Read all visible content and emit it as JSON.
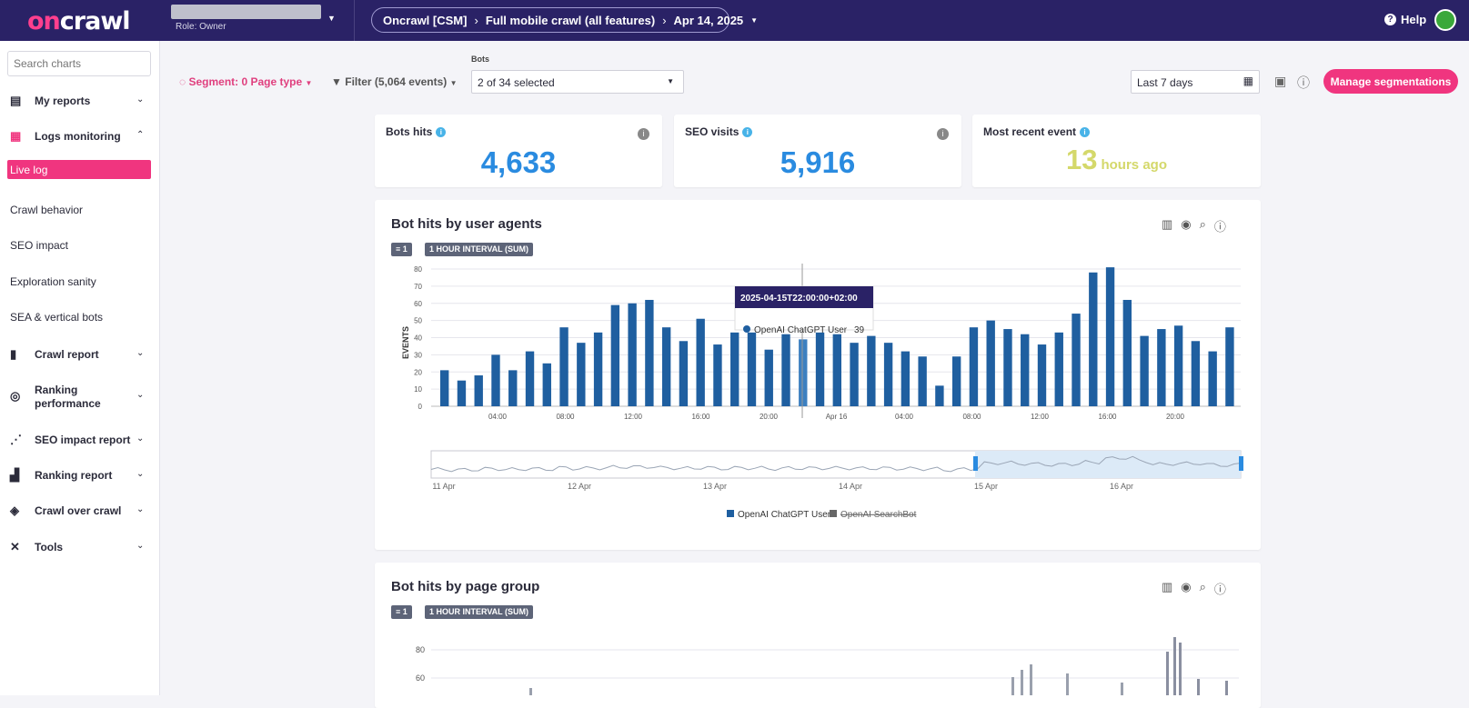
{
  "topbar": {
    "logo_a": "on",
    "logo_b": "crawl",
    "role": "Role: Owner",
    "breadcrumb": [
      "Oncrawl [CSM]",
      "Full mobile crawl (all features)",
      "Apr 14, 2025"
    ],
    "help": "Help"
  },
  "sidebar": {
    "search_placeholder": "Search charts",
    "my_reports": "My reports",
    "logs_monitoring": "Logs monitoring",
    "live_log": "Live log",
    "crawl_behavior": "Crawl behavior",
    "seo_impact": "SEO impact",
    "exploration_sanity": "Exploration sanity",
    "sea_vertical": "SEA & vertical bots",
    "crawl_report": "Crawl report",
    "ranking_performance_1": "Ranking",
    "ranking_performance_2": "performance",
    "seo_impact_report": "SEO impact report",
    "ranking_report": "Ranking report",
    "crawl_over_crawl": "Crawl over crawl",
    "tools": "Tools"
  },
  "toolbar": {
    "segment": "Segment: 0 Page type",
    "filter": "Filter (5,064 events)",
    "bots_label": "Bots",
    "bots_value": "2 of 34 selected",
    "date_range": "Last 7 days",
    "manage": "Manage segmentations"
  },
  "kpis": {
    "bots_hits_label": "Bots hits",
    "bots_hits_value": "4,633",
    "seo_visits_label": "SEO visits",
    "seo_visits_value": "5,916",
    "recent_label": "Most recent event",
    "recent_value": "13",
    "recent_unit": "hours ago"
  },
  "chart1": {
    "title": "Bot hits by user agents",
    "filter_badge": "1",
    "interval_badge": "1 HOUR INTERVAL (SUM)",
    "tooltip_date": "2025-04-15T22:00:00+02:00",
    "tooltip_series": "OpenAI ChatGPT User",
    "tooltip_value": "39",
    "legend_active": "OpenAI ChatGPT User",
    "legend_inactive": "OpenAI SearchBot"
  },
  "chart2": {
    "title": "Bot hits by page group",
    "filter_badge": "1",
    "interval_badge": "1 HOUR INTERVAL (SUM)"
  },
  "colors": {
    "accent": "#f0357f",
    "brand": "#2a2266",
    "bar": "#1f5fa0",
    "kpi": "#2a8be0"
  },
  "chart_data": [
    {
      "type": "bar",
      "title": "Bot hits by user agents",
      "ylabel": "EVENTS",
      "ylim": [
        0,
        80
      ],
      "yticks": [
        0,
        10,
        20,
        30,
        40,
        50,
        60,
        70,
        80
      ],
      "xtick_labels": [
        "04:00",
        "08:00",
        "12:00",
        "16:00",
        "20:00",
        "Apr 16",
        "04:00",
        "08:00",
        "12:00",
        "16:00",
        "20:00"
      ],
      "navigator_labels": [
        "11 Apr",
        "12 Apr",
        "13 Apr",
        "14 Apr",
        "15 Apr",
        "16 Apr"
      ],
      "series": [
        {
          "name": "OpenAI ChatGPT User",
          "values": [
            21,
            15,
            18,
            30,
            21,
            32,
            25,
            46,
            37,
            43,
            59,
            60,
            62,
            46,
            38,
            51,
            36,
            43,
            43,
            33,
            42,
            39,
            43,
            42,
            37,
            41,
            37,
            32,
            29,
            12,
            29,
            46,
            50,
            45,
            42,
            36,
            43,
            54,
            78,
            81,
            62,
            41,
            45,
            47,
            38,
            32,
            46
          ]
        },
        {
          "name": "OpenAI SearchBot",
          "values": []
        }
      ],
      "grid": true,
      "legend": "bottom"
    },
    {
      "type": "bar",
      "title": "Bot hits by page group",
      "yticks": [
        60,
        80
      ]
    }
  ]
}
